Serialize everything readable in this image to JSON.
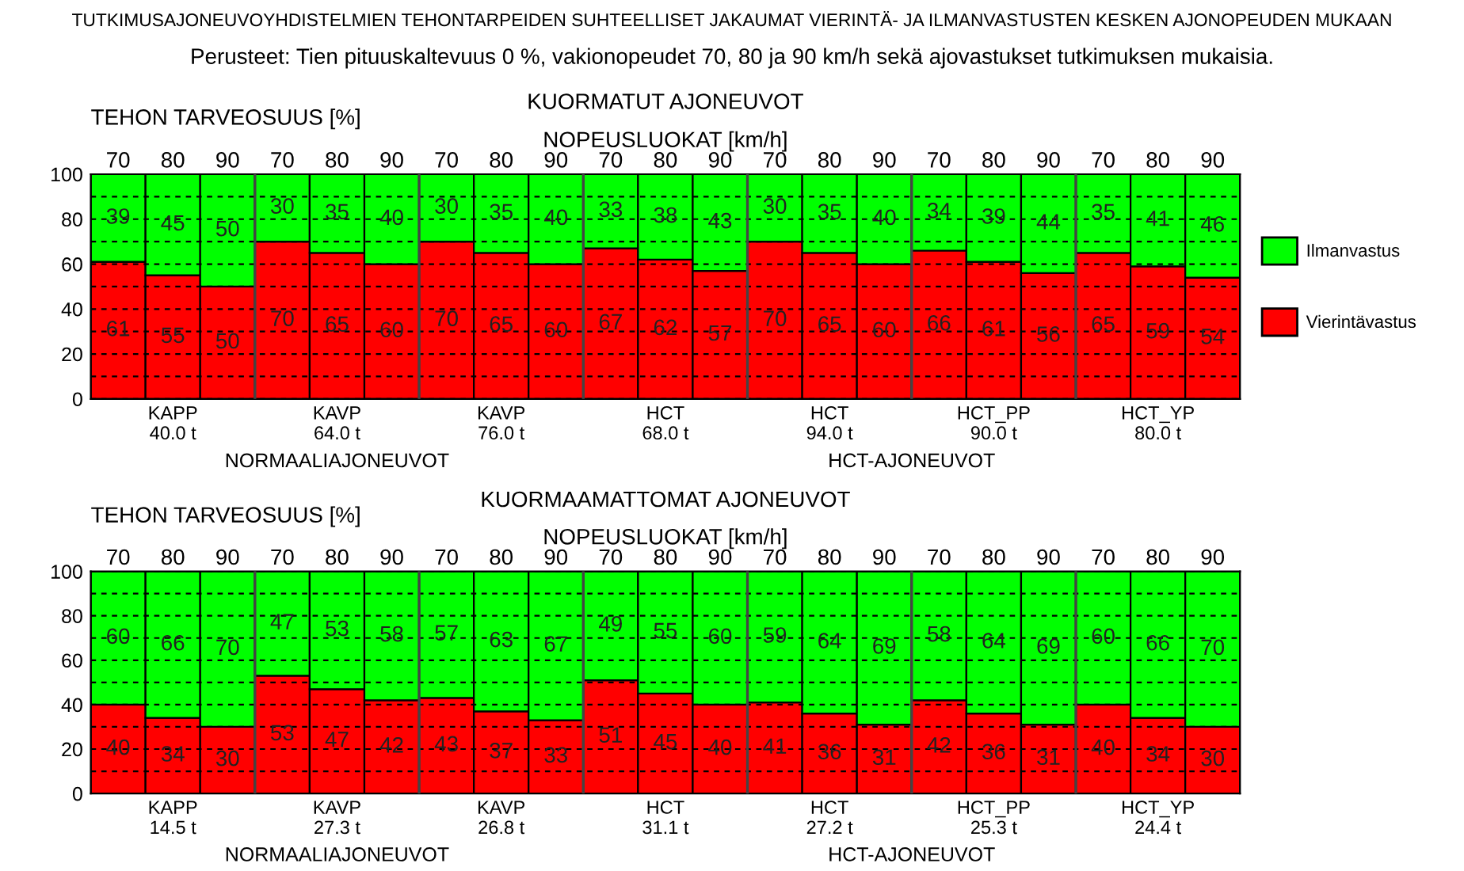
{
  "chart_data": [
    {
      "type": "bar",
      "stacked": true,
      "title": "TUTKIMUSAJONEUVOYHDISTELMIEN TEHONTARPEIDEN SUHTEELLISET JAKAUMAT VIERINTÄ- JA ILMANVASTUSTEN KESKEN AJONOPEUDEN MUKAAN",
      "subtitle": "Perusteet: Tien pituuskaltevuus 0 %, vakionopeudet 70, 80 ja 90 km/h sekä ajovastukset tutkimuksen mukaisia.",
      "xlabel": "NOPEUSLUOKAT [km/h]",
      "ylabel": "TEHON TARVEOSUUS [%]",
      "categories": [
        "70",
        "80",
        "90",
        "70",
        "80",
        "90",
        "70",
        "80",
        "90",
        "70",
        "80",
        "90",
        "70",
        "80",
        "90",
        "70",
        "80",
        "90",
        "70",
        "80",
        "90"
      ],
      "series": [
        {
          "name": "Vierintävastus",
          "color": "#ff0000",
          "values": [
            61,
            55,
            50,
            70,
            65,
            60,
            70,
            65,
            60,
            67,
            62,
            57,
            70,
            65,
            60,
            66,
            61,
            56,
            65,
            59,
            54
          ]
        },
        {
          "name": "Ilmanvastus",
          "color": "#00ff00",
          "values": [
            39,
            45,
            50,
            30,
            35,
            40,
            30,
            35,
            40,
            33,
            38,
            43,
            30,
            35,
            40,
            34,
            39,
            44,
            35,
            41,
            46
          ]
        }
      ],
      "ylim": [
        0,
        100
      ],
      "yticks": [
        0,
        {
          "value": 10,
          "label": null
        },
        20,
        {
          "value": 30,
          "label": null
        },
        40,
        {
          "value": 50,
          "label": null
        },
        60,
        {
          "value": 70,
          "label": null
        },
        80,
        {
          "value": 90,
          "label": null
        },
        100
      ],
      "grid": "y",
      "legend": "right",
      "data_labels": true,
      "annotations": [
        "KUORMATUT AJONEUVOT",
        "KAPP\n40.0 t",
        "KAVP\n64.0 t",
        "KAVP\n76.0 t",
        "HCT\n68.0 t",
        "HCT\n94.0 t",
        "HCT_PP\n90.0 t",
        "HCT_YP\n80.0 t",
        "NORMAALIAJONEUVOT",
        "HCT-AJONEUVOT"
      ]
    },
    {
      "type": "bar",
      "stacked": true,
      "xlabel": "NOPEUSLUOKAT [km/h]",
      "ylabel": "TEHON TARVEOSUUS [%]",
      "categories": [
        "70",
        "80",
        "90",
        "70",
        "80",
        "90",
        "70",
        "80",
        "90",
        "70",
        "80",
        "90",
        "70",
        "80",
        "90",
        "70",
        "80",
        "90",
        "70",
        "80",
        "90"
      ],
      "series": [
        {
          "color": "#ff0000",
          "values": [
            40,
            34,
            30,
            53,
            47,
            42,
            43,
            37,
            33,
            51,
            45,
            40,
            41,
            36,
            31,
            42,
            36,
            31,
            40,
            34,
            30
          ]
        },
        {
          "color": "#00ff00",
          "values": [
            60,
            66,
            70,
            47,
            53,
            58,
            57,
            63,
            67,
            49,
            55,
            60,
            59,
            64,
            69,
            58,
            64,
            69,
            60,
            66,
            70
          ]
        }
      ],
      "ylim": [
        0,
        100
      ],
      "yticks": [
        0,
        {
          "value": 10,
          "label": null
        },
        20,
        {
          "value": 30,
          "label": null
        },
        40,
        {
          "value": 50,
          "label": null
        },
        60,
        {
          "value": 70,
          "label": null
        },
        80,
        {
          "value": 90,
          "label": null
        },
        100
      ],
      "grid": "y",
      "data_labels": true,
      "annotations": [
        "KUORMAAMATTOMAT AJONEUVOT",
        "KAPP\n14.5 t",
        "KAVP\n27.3 t",
        "KAVP\n26.8 t",
        "HCT\n31.1 t",
        "HCT\n27.2 t",
        "HCT_PP\n25.3 t",
        "HCT_YP\n24.4 t",
        "NORMAALIAJONEUVOT",
        "HCT-AJONEUVOT"
      ]
    }
  ]
}
